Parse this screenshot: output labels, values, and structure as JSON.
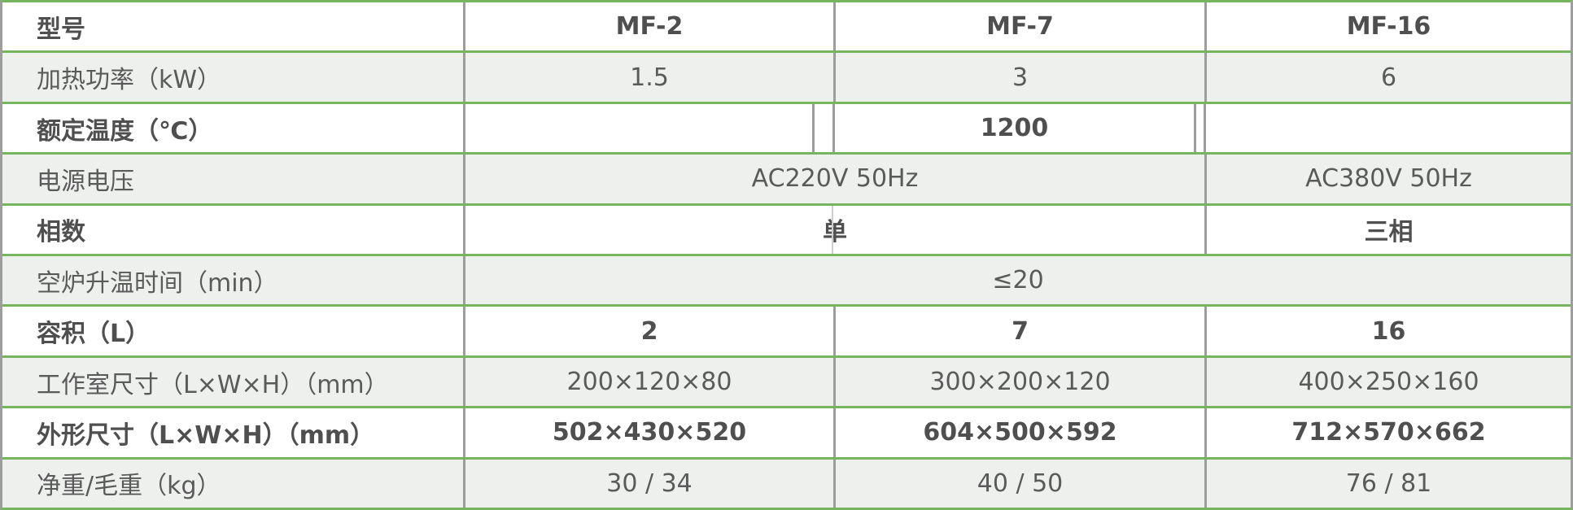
{
  "table": {
    "title_column_header": "型号",
    "models": [
      "MF-2",
      "MF-7",
      "MF-16"
    ],
    "rows": [
      {
        "label": "型号",
        "values": [
          "MF-2",
          "MF-7",
          "MF-16"
        ]
      },
      {
        "label": "加热功率（kW）",
        "values": [
          "1.5",
          "3",
          "6"
        ]
      },
      {
        "label": "额定温度（℃）",
        "values": [
          "",
          "1200",
          ""
        ]
      },
      {
        "label": "电源电压",
        "values": [
          "AC220V 50Hz",
          "AC380V 50Hz"
        ]
      },
      {
        "label": "相数",
        "values": [
          "单",
          "三相"
        ]
      },
      {
        "label": "空炉升温时间（min）",
        "values": [
          "≤20"
        ]
      },
      {
        "label": "容积（L）",
        "values": [
          "2",
          "7",
          "16"
        ]
      },
      {
        "label": "工作室尺寸（L×W×H）（mm）",
        "values": [
          "200×120×80",
          "300×200×120",
          "400×250×160"
        ]
      },
      {
        "label": "外形尺寸（L×W×H）（mm）",
        "values": [
          "502×430×520",
          "604×500×592",
          "712×570×662"
        ]
      },
      {
        "label": "净重/毛重（kg）",
        "values": [
          "30 / 34",
          "40 / 50",
          "76 / 81"
        ]
      }
    ],
    "colors": {
      "border_green": "#76b55e",
      "border_gray": "#9d9d9d",
      "alt_row_bg": "#eef0ee",
      "text": "#5a5a5a"
    }
  }
}
